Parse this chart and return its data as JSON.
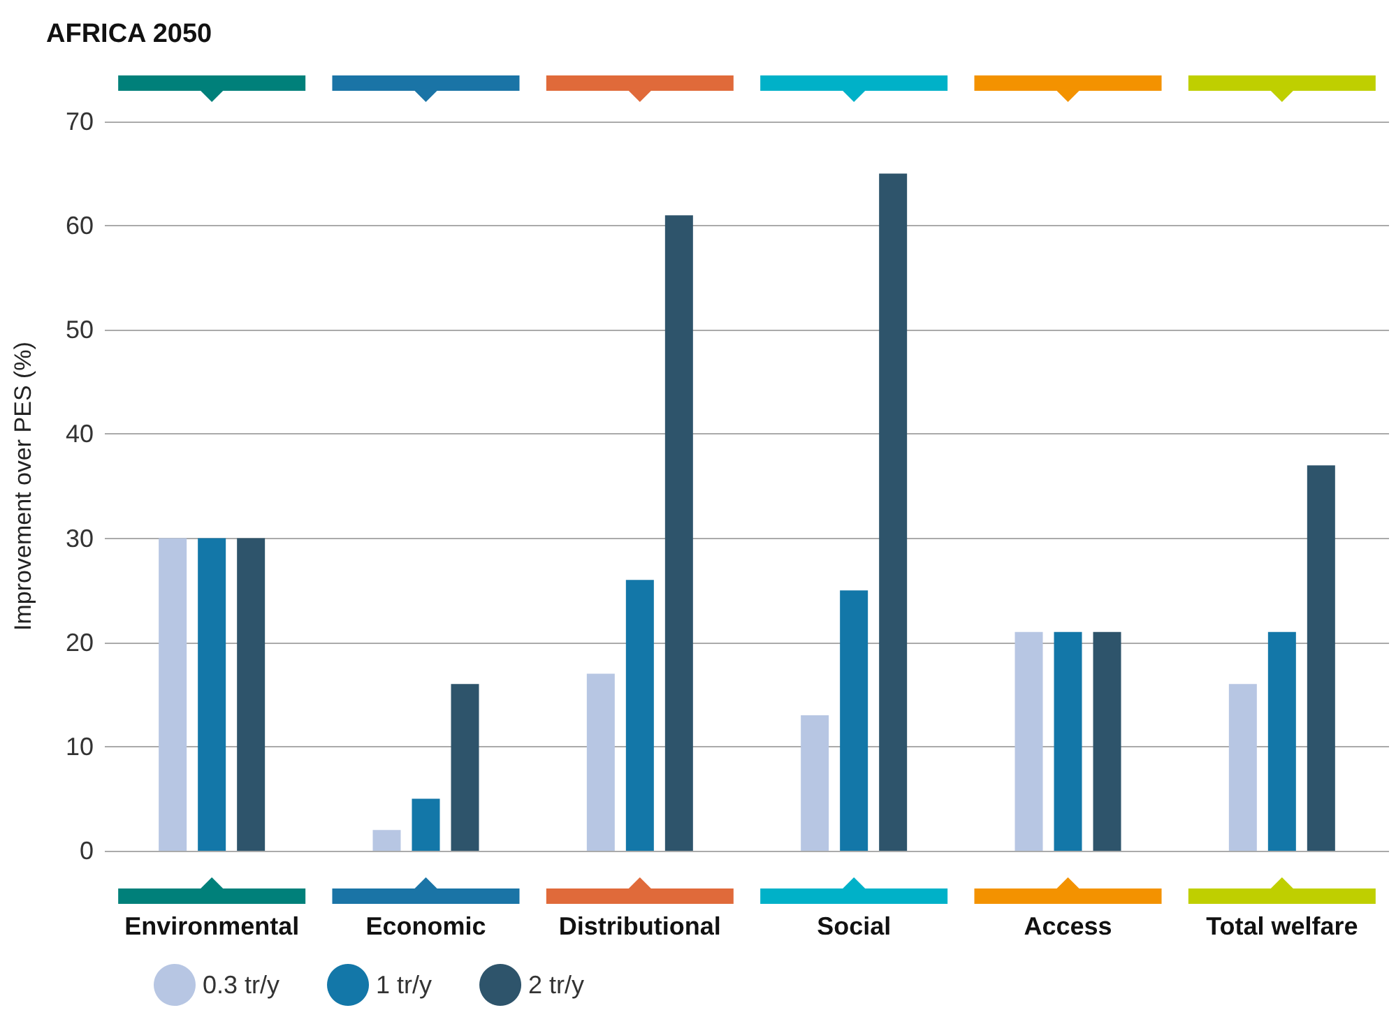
{
  "chart_data": {
    "type": "bar",
    "title": "AFRICA 2050",
    "ylabel": "Improvement over PES (%)",
    "categories": [
      "Environmental",
      "Economic",
      "Distributional",
      "Social",
      "Access",
      "Total welfare"
    ],
    "series": [
      {
        "name": "0.3 tr/y",
        "color": "#b7c6e3",
        "values": [
          30,
          2,
          17,
          13,
          21,
          16
        ]
      },
      {
        "name": "1 tr/y",
        "color": "#1377a8",
        "values": [
          30,
          5,
          26,
          25,
          21,
          21
        ]
      },
      {
        "name": "2 tr/y",
        "color": "#2e546b",
        "values": [
          30,
          16,
          61,
          65,
          21,
          37
        ]
      }
    ],
    "ylim": [
      0,
      70
    ],
    "yticks": [
      0,
      10,
      20,
      30,
      40,
      50,
      60,
      70
    ],
    "grid": "y",
    "legend": "bottom left"
  }
}
